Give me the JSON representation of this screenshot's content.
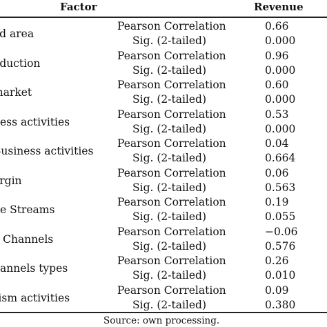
{
  "table": {
    "headers": {
      "factor": "Factor",
      "revenue": "Revenue"
    },
    "rows": [
      {
        "factor": "ed area",
        "stat1": "Pearson Correlation",
        "value1": "0.66",
        "stat2": "Sig. (2-tailed)",
        "value2": "0.000"
      },
      {
        "factor": "oduction",
        "stat1": "Pearson Correlation",
        "value1": "0.96",
        "stat2": "Sig. (2-tailed)",
        "value2": "0.000"
      },
      {
        "factor": "market",
        "stat1": "Pearson Correlation",
        "value1": "0.60",
        "stat2": "Sig. (2-tailed)",
        "value2": "0.000"
      },
      {
        "factor": "ness activities",
        "stat1": "Pearson Correlation",
        "value1": "0.53",
        "stat2": "Sig. (2-tailed)",
        "value2": "0.000"
      },
      {
        "factor": "Business activities",
        "stat1": "Pearson Correlation",
        "value1": "0.04",
        "stat2": "Sig. (2-tailed)",
        "value2": "0.664"
      },
      {
        "factor": "argin",
        "stat1": "Pearson Correlation",
        "value1": "0.06",
        "stat2": "Sig. (2-tailed)",
        "value2": "0.563"
      },
      {
        "factor": "ue Streams",
        "stat1": "Pearson Correlation",
        "value1": "0.19",
        "stat2": "Sig. (2-tailed)",
        "value2": "0.055"
      },
      {
        "factor": "e Channels",
        "stat1": "Pearson Correlation",
        "value1": "−0.06",
        "stat2": "Sig. (2-tailed)",
        "value2": "0.576"
      },
      {
        "factor": "hannels types",
        "stat1": "Pearson Correlation",
        "value1": "0.26",
        "stat2": "Sig. (2-tailed)",
        "value2": "0.010"
      },
      {
        "factor": "rism activities",
        "stat1": "Pearson Correlation",
        "value1": "0.09",
        "stat2": "Sig. (2-tailed)",
        "value2": "0.380"
      }
    ]
  },
  "source_note": "Source:  own processing."
}
